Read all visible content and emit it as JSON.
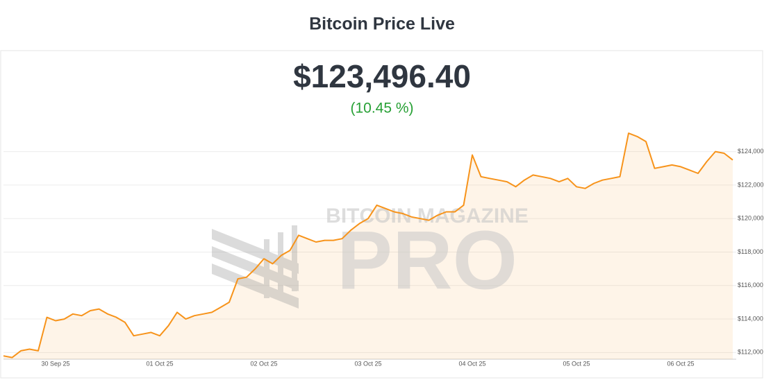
{
  "chart_data": {
    "type": "area",
    "title": "Bitcoin Price Live",
    "price": "$123,496.40",
    "change": "(10.45 %)",
    "watermark": [
      "BITCOIN MAGAZINE",
      "PRO"
    ],
    "color": "#f7931a",
    "categories": [
      null,
      null,
      null,
      null,
      null,
      null,
      "30 Sep 25",
      null,
      null,
      null,
      null,
      null,
      null,
      null,
      null,
      null,
      null,
      null,
      "01 Oct 25",
      null,
      null,
      null,
      null,
      null,
      null,
      null,
      null,
      null,
      null,
      null,
      "02 Oct 25",
      null,
      null,
      null,
      null,
      null,
      null,
      null,
      null,
      null,
      null,
      null,
      "03 Oct 25",
      null,
      null,
      null,
      null,
      null,
      null,
      null,
      null,
      null,
      null,
      null,
      "04 Oct 25",
      null,
      null,
      null,
      null,
      null,
      null,
      null,
      null,
      null,
      null,
      null,
      "05 Oct 25",
      null,
      null,
      null,
      null,
      null,
      null,
      null,
      null,
      null,
      null,
      null,
      "06 Oct 25",
      null,
      null,
      null,
      null,
      null,
      null
    ],
    "values": [
      111800,
      111700,
      112100,
      112200,
      112100,
      114100,
      113900,
      114000,
      114300,
      114200,
      114500,
      114600,
      114300,
      114100,
      113800,
      113000,
      113100,
      113200,
      113000,
      113600,
      114400,
      114000,
      114200,
      114300,
      114400,
      114700,
      115000,
      116400,
      116500,
      117000,
      117600,
      117300,
      117800,
      118100,
      119000,
      118800,
      118600,
      118700,
      118700,
      118800,
      119300,
      119700,
      120000,
      120800,
      120600,
      120400,
      120300,
      120100,
      120000,
      119900,
      120200,
      120400,
      120400,
      120800,
      123800,
      122500,
      122400,
      122300,
      122200,
      121900,
      122300,
      122600,
      122500,
      122400,
      122200,
      122400,
      121900,
      121800,
      122100,
      122300,
      122400,
      122500,
      125100,
      124900,
      124600,
      123000,
      123100,
      123200,
      123100,
      122900,
      122700,
      123400,
      124000,
      123900,
      123500
    ],
    "ylim": [
      111600,
      125600
    ],
    "yticks": [
      {
        "value": 112000,
        "label": "$112,000"
      },
      {
        "value": 114000,
        "label": "$114,000"
      },
      {
        "value": 116000,
        "label": "$116,000"
      },
      {
        "value": 118000,
        "label": "$118,000"
      },
      {
        "value": 120000,
        "label": "$120,000"
      },
      {
        "value": 122000,
        "label": "$122,000"
      },
      {
        "value": 124000,
        "label": "$124,000"
      }
    ],
    "grid": true
  }
}
